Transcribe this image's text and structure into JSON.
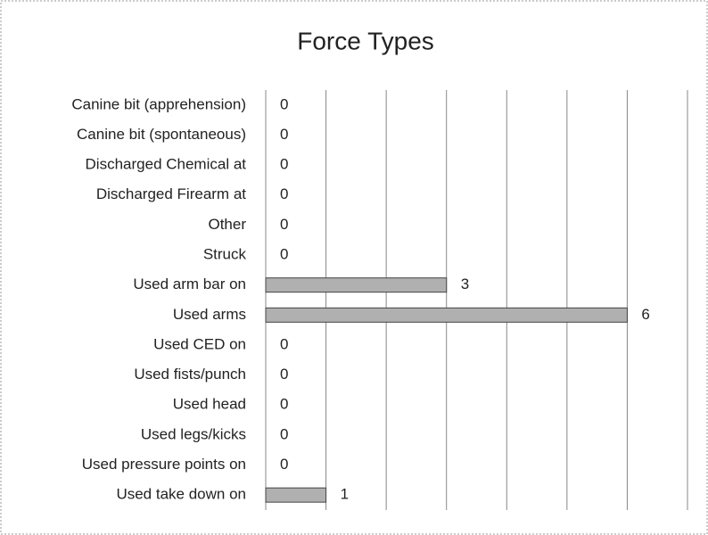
{
  "chart_data": {
    "type": "barh",
    "title": "Force Types",
    "categories": [
      "Canine bit (apprehension)",
      "Canine bit (spontaneous)",
      "Discharged Chemical at",
      "Discharged Firearm at",
      "Other",
      "Struck",
      "Used arm bar on",
      "Used arms",
      "Used CED on",
      "Used fists/punch",
      "Used head",
      "Used legs/kicks",
      "Used pressure points on",
      "Used take down on"
    ],
    "values": [
      0,
      0,
      0,
      0,
      0,
      0,
      3,
      6,
      0,
      0,
      0,
      0,
      0,
      1
    ],
    "color": "#b0b0b0",
    "xlim": [
      0,
      7
    ],
    "xticks": [
      0,
      1,
      2,
      3,
      4,
      5,
      6,
      7
    ],
    "grid": true
  }
}
